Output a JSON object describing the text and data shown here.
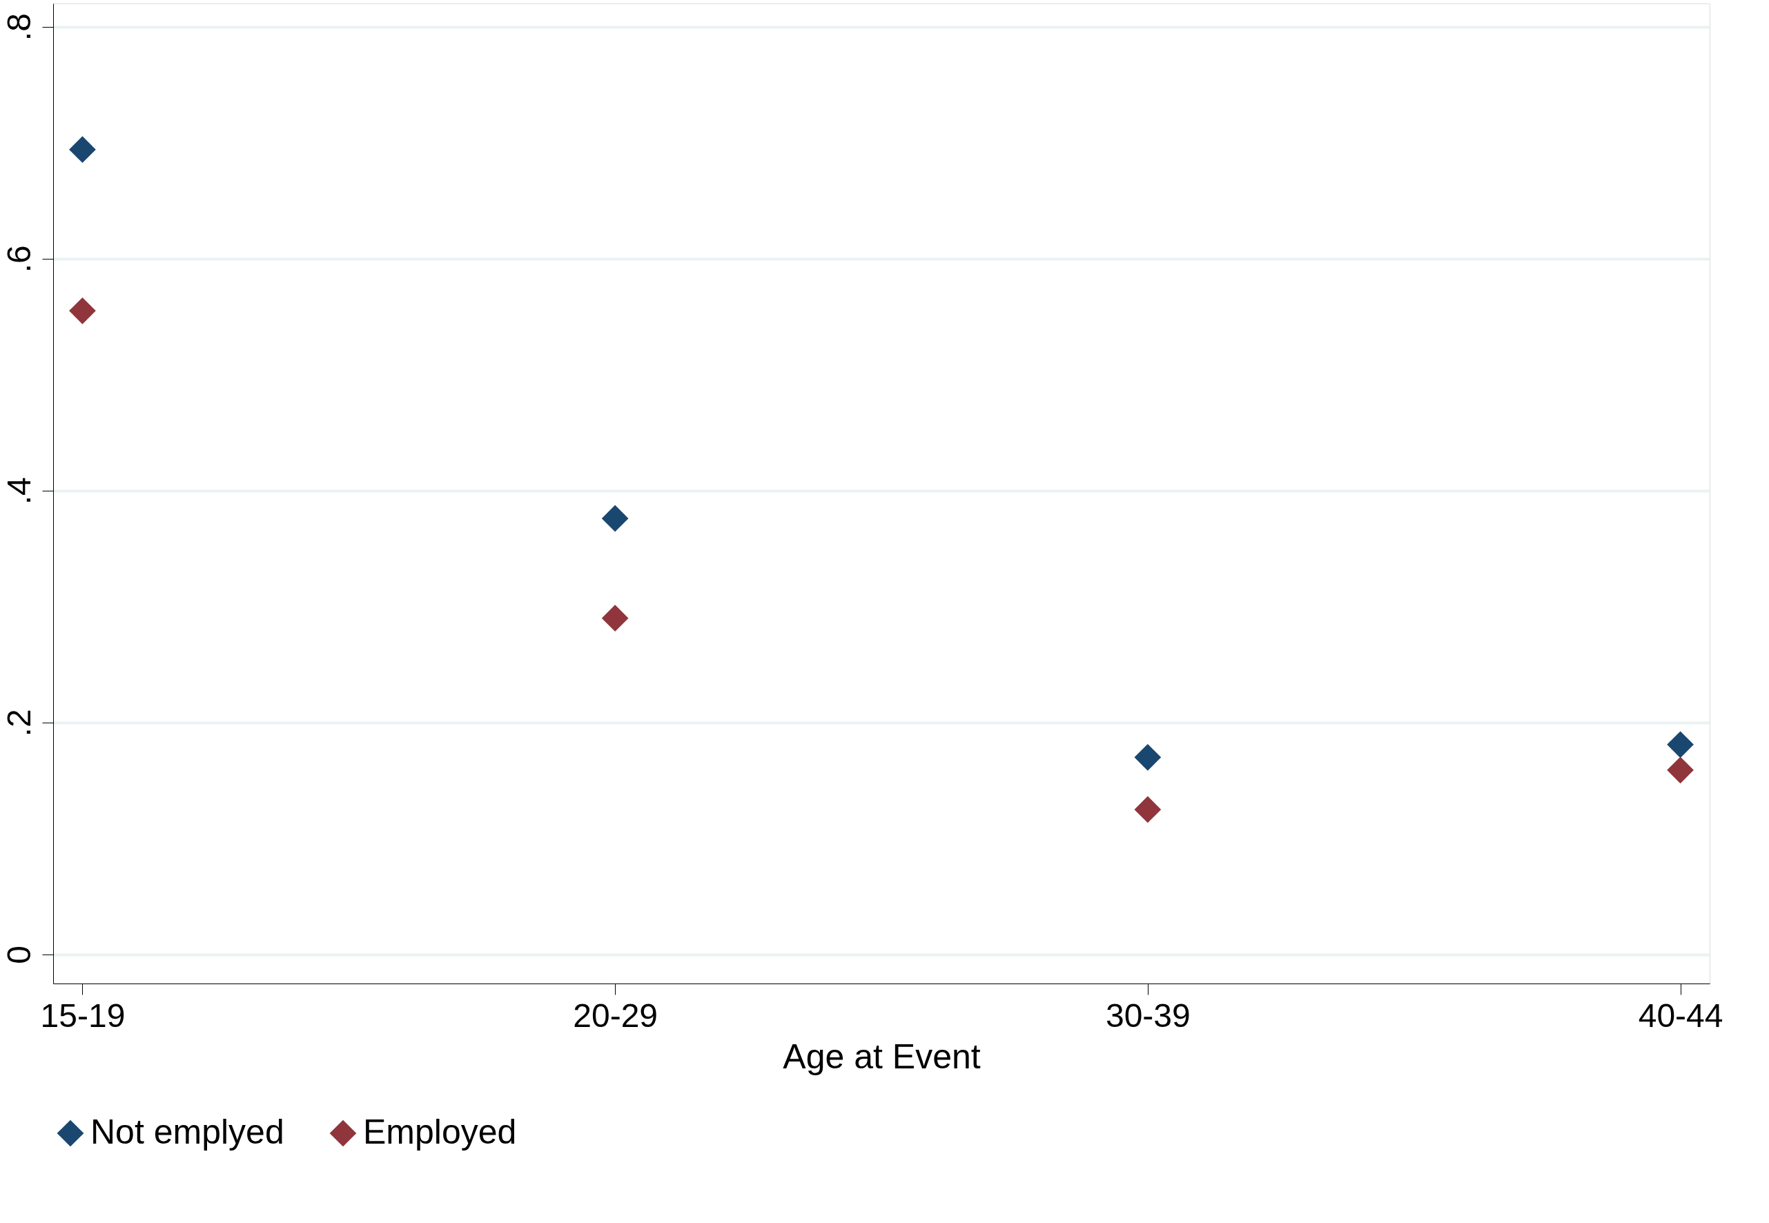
{
  "chart_data": {
    "type": "scatter",
    "xlabel": "Age at Event",
    "categories": [
      "15-19",
      "20-29",
      "30-39",
      "40-44"
    ],
    "series": [
      {
        "name": "Not emplyed",
        "color": "#1a476f",
        "values": [
          0.694,
          0.376,
          0.17,
          0.181
        ]
      },
      {
        "name": "Employed",
        "color": "#90353b",
        "values": [
          0.555,
          0.29,
          0.125,
          0.159
        ]
      }
    ],
    "ylim": [
      -0.025,
      0.82
    ],
    "yticks": [
      {
        "value": 0,
        "label": "0"
      },
      {
        "value": 0.2,
        "label": ".2"
      },
      {
        "value": 0.4,
        "label": ".4"
      },
      {
        "value": 0.6,
        "label": ".6"
      },
      {
        "value": 0.8,
        "label": ".8"
      }
    ],
    "grid": "y",
    "legend": "bottom",
    "marker": "diamond"
  }
}
